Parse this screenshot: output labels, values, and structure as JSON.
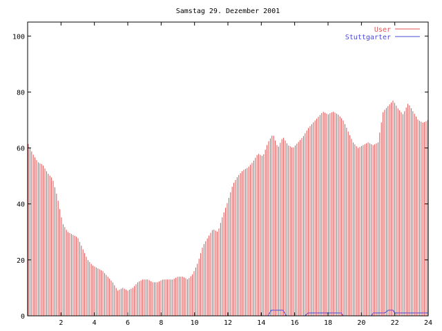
{
  "chart_data": {
    "type": "bar",
    "title": "Samstag 29. Dezember 2001",
    "xlabel": "",
    "ylabel": "",
    "xlim": [
      0,
      24
    ],
    "ylim": [
      0,
      105
    ],
    "x_ticks": [
      2,
      4,
      6,
      8,
      10,
      12,
      14,
      16,
      18,
      20,
      22,
      24
    ],
    "y_ticks": [
      0,
      20,
      40,
      60,
      80,
      100
    ],
    "grid": false,
    "legend_position": "top-right",
    "series": [
      {
        "name": "User",
        "style": "impulses",
        "color": "#e05050",
        "points": [
          [
            0.0,
            62
          ],
          [
            0.3,
            58
          ],
          [
            0.6,
            55
          ],
          [
            0.9,
            54
          ],
          [
            1.2,
            51
          ],
          [
            1.5,
            49
          ],
          [
            1.8,
            42
          ],
          [
            2.1,
            33
          ],
          [
            2.4,
            30
          ],
          [
            2.7,
            29
          ],
          [
            3.0,
            28
          ],
          [
            3.3,
            24
          ],
          [
            3.6,
            20
          ],
          [
            3.9,
            18
          ],
          [
            4.2,
            17
          ],
          [
            4.5,
            16
          ],
          [
            4.8,
            14
          ],
          [
            5.1,
            12
          ],
          [
            5.4,
            9
          ],
          [
            5.7,
            10
          ],
          [
            6.0,
            9
          ],
          [
            6.3,
            10
          ],
          [
            6.6,
            12
          ],
          [
            6.9,
            13
          ],
          [
            7.2,
            13
          ],
          [
            7.5,
            12
          ],
          [
            7.8,
            12
          ],
          [
            8.1,
            13
          ],
          [
            8.4,
            13
          ],
          [
            8.7,
            13
          ],
          [
            9.0,
            14
          ],
          [
            9.3,
            14
          ],
          [
            9.6,
            13
          ],
          [
            9.9,
            15
          ],
          [
            10.2,
            19
          ],
          [
            10.5,
            25
          ],
          [
            10.8,
            28
          ],
          [
            11.1,
            31
          ],
          [
            11.4,
            30
          ],
          [
            11.7,
            36
          ],
          [
            12.0,
            41
          ],
          [
            12.3,
            47
          ],
          [
            12.6,
            50
          ],
          [
            12.9,
            52
          ],
          [
            13.2,
            53
          ],
          [
            13.5,
            55
          ],
          [
            13.8,
            58
          ],
          [
            14.1,
            57
          ],
          [
            14.4,
            62
          ],
          [
            14.7,
            65
          ],
          [
            15.0,
            60
          ],
          [
            15.3,
            64
          ],
          [
            15.6,
            61
          ],
          [
            15.9,
            60
          ],
          [
            16.2,
            62
          ],
          [
            16.5,
            64
          ],
          [
            16.8,
            67
          ],
          [
            17.1,
            69
          ],
          [
            17.4,
            71
          ],
          [
            17.7,
            73
          ],
          [
            18.0,
            72
          ],
          [
            18.3,
            73
          ],
          [
            18.6,
            72
          ],
          [
            18.9,
            70
          ],
          [
            19.2,
            66
          ],
          [
            19.5,
            62
          ],
          [
            19.8,
            60
          ],
          [
            20.1,
            61
          ],
          [
            20.4,
            62
          ],
          [
            20.7,
            61
          ],
          [
            21.0,
            62
          ],
          [
            21.3,
            73
          ],
          [
            21.6,
            75
          ],
          [
            21.9,
            77
          ],
          [
            22.2,
            74
          ],
          [
            22.5,
            72
          ],
          [
            22.8,
            76
          ],
          [
            23.1,
            73
          ],
          [
            23.4,
            70
          ],
          [
            23.7,
            69
          ],
          [
            24.0,
            70
          ]
        ]
      },
      {
        "name": "Stuttgarter",
        "style": "line",
        "color": "#4a4ad8",
        "points": [
          [
            0,
            0
          ],
          [
            14.4,
            0
          ],
          [
            14.6,
            2
          ],
          [
            15.3,
            2
          ],
          [
            15.5,
            0
          ],
          [
            16.6,
            0
          ],
          [
            16.8,
            1
          ],
          [
            18.8,
            1
          ],
          [
            18.9,
            0
          ],
          [
            20.6,
            0
          ],
          [
            20.7,
            1
          ],
          [
            21.4,
            1
          ],
          [
            21.6,
            2
          ],
          [
            21.9,
            2
          ],
          [
            22.0,
            1
          ],
          [
            24.0,
            1
          ]
        ]
      }
    ]
  }
}
